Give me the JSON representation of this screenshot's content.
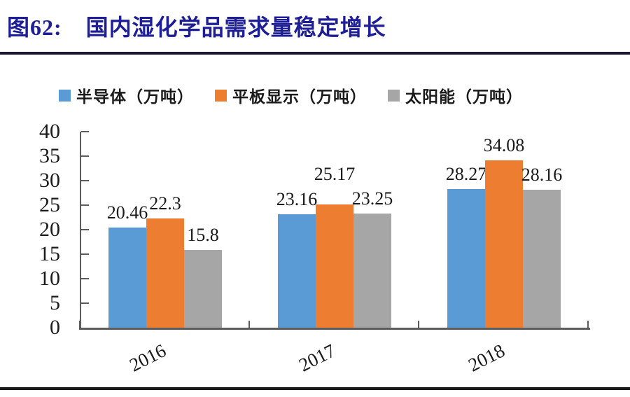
{
  "header": {
    "figure_label": "图62:",
    "title": "国内湿化学品需求量稳定增长",
    "title_color": "#1e1e96"
  },
  "chart_data": {
    "type": "bar",
    "title": "国内湿化学品需求量稳定增长",
    "categories": [
      "2016",
      "2017",
      "2018"
    ],
    "series": [
      {
        "name": "半导体（万吨）",
        "color": "#5B9BD5",
        "values": [
          20.46,
          23.16,
          28.27
        ]
      },
      {
        "name": "平板显示（万吨）",
        "color": "#ED7D31",
        "values": [
          22.3,
          25.17,
          34.08
        ]
      },
      {
        "name": "太阳能（万吨）",
        "color": "#A6A6A6",
        "values": [
          15.8,
          23.25,
          28.16
        ]
      }
    ],
    "ylim": [
      0,
      40
    ],
    "yticks": [
      0,
      5,
      10,
      15,
      20,
      25,
      30,
      35,
      40
    ],
    "grid": false,
    "legend_position": "top",
    "axis_color": "#5c5c5c",
    "xlabel": "",
    "ylabel": ""
  }
}
